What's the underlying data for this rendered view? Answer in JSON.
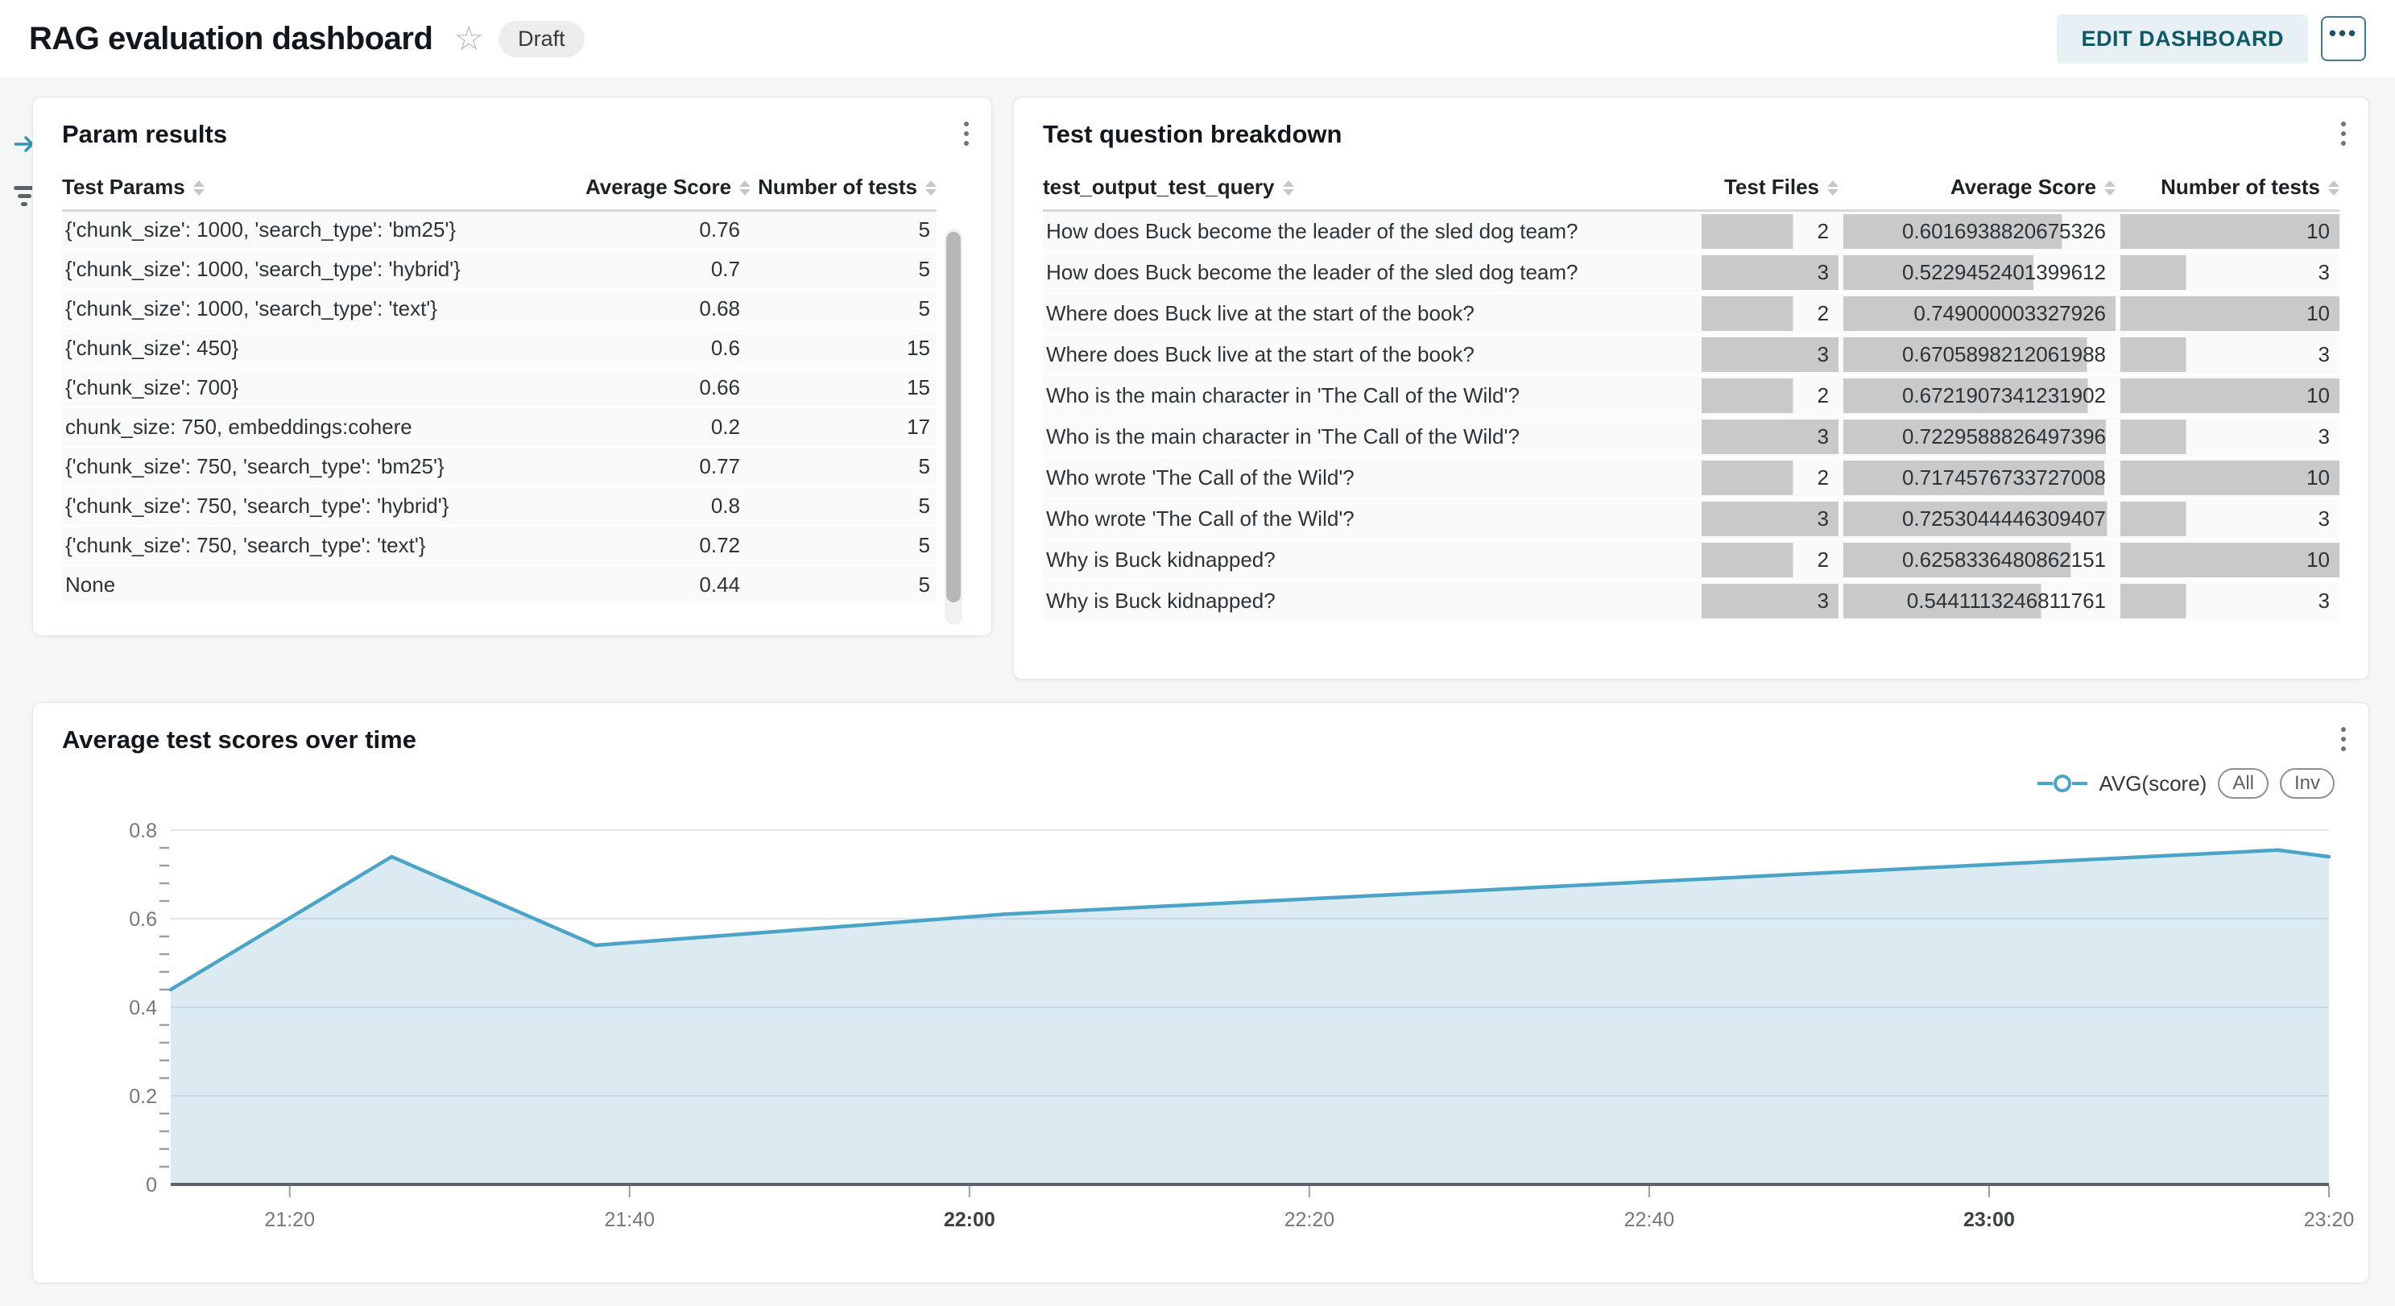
{
  "header": {
    "title": "RAG evaluation dashboard",
    "status_badge": "Draft",
    "star_icon": "star-outline",
    "edit_button": "EDIT DASHBOARD",
    "more_button": "•••"
  },
  "side_rail": {
    "icons": [
      "collapse-right-icon",
      "filter-icon"
    ]
  },
  "colors": {
    "accent_teal": "#0e5868",
    "line": "#4BA3C7",
    "area_fill": "#DCEAF2",
    "data_bar": "#C9C9C9",
    "grid": "#8CA6C0"
  },
  "param_results": {
    "title": "Param results",
    "columns": [
      "Test Params",
      "Average Score",
      "Number of tests"
    ],
    "rows": [
      [
        "{'chunk_size': 1000, 'search_type': 'bm25'}",
        "0.76",
        "5"
      ],
      [
        "{'chunk_size': 1000, 'search_type': 'hybrid'}",
        "0.7",
        "5"
      ],
      [
        "{'chunk_size': 1000, 'search_type': 'text'}",
        "0.68",
        "5"
      ],
      [
        "{'chunk_size': 450}",
        "0.6",
        "15"
      ],
      [
        "{'chunk_size': 700}",
        "0.66",
        "15"
      ],
      [
        "chunk_size: 750, embeddings:cohere",
        "0.2",
        "17"
      ],
      [
        "{'chunk_size': 750, 'search_type': 'bm25'}",
        "0.77",
        "5"
      ],
      [
        "{'chunk_size': 750, 'search_type': 'hybrid'}",
        "0.8",
        "5"
      ],
      [
        "{'chunk_size': 750, 'search_type': 'text'}",
        "0.72",
        "5"
      ],
      [
        "None",
        "0.44",
        "5"
      ]
    ]
  },
  "question_breakdown": {
    "title": "Test question breakdown",
    "columns": [
      "test_output_test_query",
      "Test Files",
      "Average Score",
      "Number of tests"
    ],
    "bar_max": {
      "files": 3,
      "score": 0.749000003327926,
      "tests": 10
    },
    "rows": [
      {
        "query": "How does Buck become the leader of the sled dog team?",
        "files": 2,
        "score": "0.6016938820675326",
        "tests": 10
      },
      {
        "query": "How does Buck become the leader of the sled dog team?",
        "files": 3,
        "score": "0.5229452401399612",
        "tests": 3
      },
      {
        "query": "Where does Buck live at the start of the book?",
        "files": 2,
        "score": "0.749000003327926",
        "tests": 10
      },
      {
        "query": "Where does Buck live at the start of the book?",
        "files": 3,
        "score": "0.6705898212061988",
        "tests": 3
      },
      {
        "query": "Who is the main character in 'The Call of the Wild'?",
        "files": 2,
        "score": "0.6721907341231902",
        "tests": 10
      },
      {
        "query": "Who is the main character in 'The Call of the Wild'?",
        "files": 3,
        "score": "0.7229588826497396",
        "tests": 3
      },
      {
        "query": "Who wrote 'The Call of the Wild'?",
        "files": 2,
        "score": "0.7174576733727008",
        "tests": 10
      },
      {
        "query": "Who wrote 'The Call of the Wild'?",
        "files": 3,
        "score": "0.7253044446309407",
        "tests": 3
      },
      {
        "query": "Why is Buck kidnapped?",
        "files": 2,
        "score": "0.6258336480862151",
        "tests": 10
      },
      {
        "query": "Why is Buck kidnapped?",
        "files": 3,
        "score": "0.5441113246811761",
        "tests": 3
      }
    ]
  },
  "chart_card": {
    "title": "Average test scores over time",
    "legend": {
      "series_label": "AVG(score)",
      "buttons": [
        "All",
        "Inv"
      ]
    }
  },
  "chart_data": {
    "type": "area",
    "title": "Average test scores over time",
    "series": [
      {
        "name": "AVG(score)",
        "points": [
          {
            "x": "21:13",
            "y": 0.44
          },
          {
            "x": "21:26",
            "y": 0.74
          },
          {
            "x": "21:38",
            "y": 0.54
          },
          {
            "x": "22:02",
            "y": 0.61
          },
          {
            "x": "23:17",
            "y": 0.755
          },
          {
            "x": "23:20",
            "y": 0.74
          }
        ]
      }
    ],
    "x_ticks": [
      "21:20",
      "21:40",
      "22:00",
      "22:20",
      "22:40",
      "23:00",
      "23:20"
    ],
    "x_ticks_bold": [
      "22:00",
      "23:00"
    ],
    "xlabel": "",
    "ylabel": "",
    "ylim": [
      0,
      0.8
    ],
    "y_ticks": [
      0,
      0.2,
      0.4,
      0.6,
      0.8
    ],
    "y_minor_step": 0.04,
    "grid": "horizontal",
    "legend_position": "top-right"
  }
}
